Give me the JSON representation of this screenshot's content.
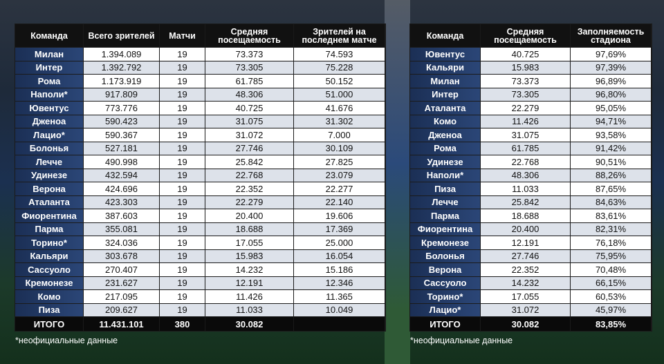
{
  "left_table": {
    "headers": [
      "Команда",
      "Всего зрителей",
      "Матчи",
      "Средняя посещаемость",
      "Зрителей на последнем матче"
    ],
    "rows": [
      [
        "Милан",
        "1.394.089",
        "19",
        "73.373",
        "74.593"
      ],
      [
        "Интер",
        "1.392.792",
        "19",
        "73.305",
        "75.228"
      ],
      [
        "Рома",
        "1.173.919",
        "19",
        "61.785",
        "50.152"
      ],
      [
        "Наполи*",
        "917.809",
        "19",
        "48.306",
        "51.000"
      ],
      [
        "Ювентус",
        "773.776",
        "19",
        "40.725",
        "41.676"
      ],
      [
        "Дженоа",
        "590.423",
        "19",
        "31.075",
        "31.302"
      ],
      [
        "Лацио*",
        "590.367",
        "19",
        "31.072",
        "7.000"
      ],
      [
        "Болонья",
        "527.181",
        "19",
        "27.746",
        "30.109"
      ],
      [
        "Лечче",
        "490.998",
        "19",
        "25.842",
        "27.825"
      ],
      [
        "Удинезе",
        "432.594",
        "19",
        "22.768",
        "23.079"
      ],
      [
        "Верона",
        "424.696",
        "19",
        "22.352",
        "22.277"
      ],
      [
        "Аталанта",
        "423.303",
        "19",
        "22.279",
        "22.140"
      ],
      [
        "Фиорентина",
        "387.603",
        "19",
        "20.400",
        "19.606"
      ],
      [
        "Парма",
        "355.081",
        "19",
        "18.688",
        "17.369"
      ],
      [
        "Торино*",
        "324.036",
        "19",
        "17.055",
        "25.000"
      ],
      [
        "Кальяри",
        "303.678",
        "19",
        "15.983",
        "16.054"
      ],
      [
        "Сассуоло",
        "270.407",
        "19",
        "14.232",
        "15.186"
      ],
      [
        "Кремонезе",
        "231.627",
        "19",
        "12.191",
        "12.346"
      ],
      [
        "Комо",
        "217.095",
        "19",
        "11.426",
        "11.365"
      ],
      [
        "Пиза",
        "209.627",
        "19",
        "11.033",
        "10.049"
      ]
    ],
    "total": [
      "ИТОГО",
      "11.431.101",
      "380",
      "30.082"
    ],
    "footnote": "*неофициальные данные"
  },
  "right_table": {
    "headers": [
      "Команда",
      "Средняя посещаемость",
      "Заполняемость стадиона"
    ],
    "rows": [
      [
        "Ювентус",
        "40.725",
        "97,69%"
      ],
      [
        "Кальяри",
        "15.983",
        "97,39%"
      ],
      [
        "Милан",
        "73.373",
        "96,89%"
      ],
      [
        "Интер",
        "73.305",
        "96,80%"
      ],
      [
        "Аталанта",
        "22.279",
        "95,05%"
      ],
      [
        "Комо",
        "11.426",
        "94,71%"
      ],
      [
        "Дженоа",
        "31.075",
        "93,58%"
      ],
      [
        "Рома",
        "61.785",
        "91,42%"
      ],
      [
        "Удинезе",
        "22.768",
        "90,51%"
      ],
      [
        "Наполи*",
        "48.306",
        "88,26%"
      ],
      [
        "Пиза",
        "11.033",
        "87,65%"
      ],
      [
        "Лечче",
        "25.842",
        "84,63%"
      ],
      [
        "Парма",
        "18.688",
        "83,61%"
      ],
      [
        "Фиорентина",
        "20.400",
        "82,31%"
      ],
      [
        "Кремонезе",
        "12.191",
        "76,18%"
      ],
      [
        "Болонья",
        "27.746",
        "75,95%"
      ],
      [
        "Верона",
        "22.352",
        "70,48%"
      ],
      [
        "Сассуоло",
        "14.232",
        "66,15%"
      ],
      [
        "Торино*",
        "17.055",
        "60,53%"
      ],
      [
        "Лацио*",
        "31.072",
        "45,97%"
      ]
    ],
    "total": [
      "ИТОГО",
      "30.082",
      "83,85%"
    ],
    "footnote": "*неофициальные данные"
  }
}
